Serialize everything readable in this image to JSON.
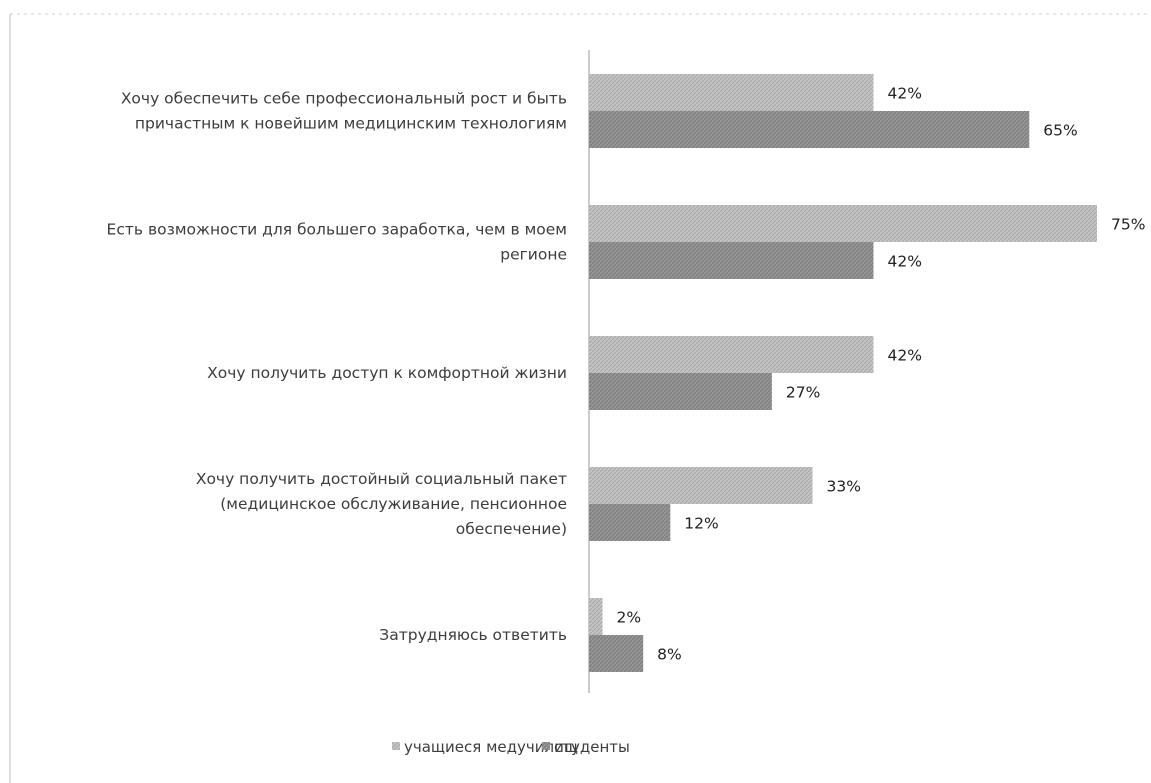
{
  "chart_data": {
    "type": "bar",
    "orientation": "horizontal",
    "categories": [
      [
        "Хочу обеспечить себе профессиональный рост и быть",
        "причастным к новейшим медицинским технологиям"
      ],
      [
        "Есть возможности для большего заработка, чем в моем",
        "регионе"
      ],
      [
        "Хочу получить доступ к комфортной жизни"
      ],
      [
        "Хочу получить достойный социальный пакет",
        "(медицинское обслуживание, пенсионное",
        "обеспечение)"
      ],
      [
        "Затрудняюсь ответить"
      ]
    ],
    "series": [
      {
        "name": "учащиеся медучилищ",
        "values": [
          42,
          75,
          42,
          33,
          2
        ],
        "labels": [
          "42%",
          "75%",
          "42%",
          "33%",
          "2%"
        ],
        "color": "#bdbdbd"
      },
      {
        "name": "студенты",
        "values": [
          65,
          42,
          27,
          12,
          8
        ],
        "labels": [
          "65%",
          "42%",
          "27%",
          "12%",
          "8%"
        ],
        "color": "#8e8e8e"
      }
    ],
    "xlim": [
      0,
      75
    ],
    "grid": false,
    "legend_position": "bottom"
  }
}
